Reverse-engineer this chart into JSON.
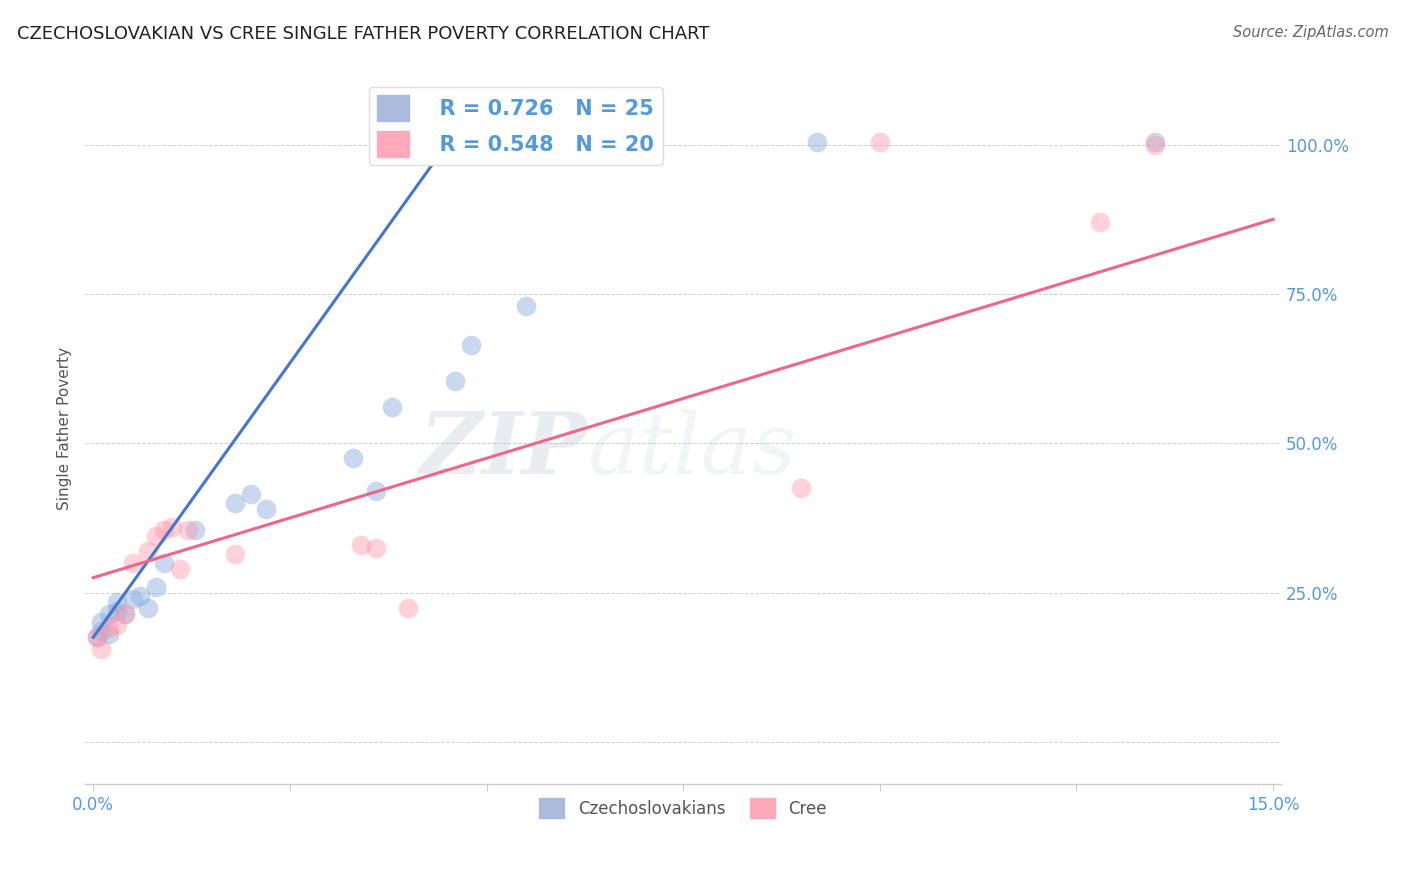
{
  "title": "CZECHOSLOVAKIAN VS CREE SINGLE FATHER POVERTY CORRELATION CHART",
  "source": "Source: ZipAtlas.com",
  "ylabel": "Single Father Poverty",
  "xlim": [
    -0.001,
    0.151
  ],
  "ylim": [
    -0.07,
    1.12
  ],
  "legend_r_blue": "R = 0.726",
  "legend_n_blue": "N = 25",
  "legend_r_pink": "R = 0.548",
  "legend_n_pink": "N = 20",
  "blue_scatter": "#88AADD",
  "pink_scatter": "#FF99AA",
  "blue_line": "#4477CC",
  "pink_line": "#EE6688",
  "watermark_zip": "ZIP",
  "watermark_atlas": "atlas",
  "ytick_positions": [
    0.0,
    0.25,
    0.5,
    0.75,
    1.0
  ],
  "ytick_labels_right": [
    "",
    "25.0%",
    "50.0%",
    "75.0%",
    "100.0%"
  ],
  "xtick_positions": [
    0.0,
    0.025,
    0.05,
    0.075,
    0.1,
    0.125,
    0.15
  ],
  "xtick_labels": [
    "0.0%",
    "",
    "",
    "",
    "",
    "",
    "15.0%"
  ],
  "grid_color": "#BBBBBB",
  "axis_label_color": "#5599DD",
  "axis_tick_fontsize": 12,
  "blue_line_x": [
    0.0,
    0.046
  ],
  "blue_line_y": [
    0.175,
    1.02
  ],
  "pink_line_x": [
    0.0,
    0.15
  ],
  "pink_line_y": [
    0.275,
    0.875
  ],
  "czechoslovakians_x": [
    0.0005,
    0.001,
    0.001,
    0.002,
    0.002,
    0.003,
    0.003,
    0.004,
    0.005,
    0.006,
    0.007,
    0.008,
    0.009,
    0.013,
    0.018,
    0.02,
    0.022,
    0.033,
    0.036,
    0.038,
    0.046,
    0.048,
    0.055,
    0.092,
    0.135
  ],
  "czechoslovakians_y": [
    0.175,
    0.185,
    0.2,
    0.18,
    0.215,
    0.22,
    0.235,
    0.215,
    0.24,
    0.245,
    0.225,
    0.26,
    0.3,
    0.355,
    0.4,
    0.415,
    0.39,
    0.475,
    0.42,
    0.56,
    0.605,
    0.665,
    0.73,
    1.005,
    1.005
  ],
  "cree_x": [
    0.0005,
    0.001,
    0.002,
    0.003,
    0.004,
    0.005,
    0.007,
    0.008,
    0.009,
    0.01,
    0.011,
    0.012,
    0.018,
    0.034,
    0.036,
    0.04,
    0.09,
    0.1,
    0.128,
    0.135
  ],
  "cree_y": [
    0.175,
    0.155,
    0.19,
    0.195,
    0.215,
    0.3,
    0.32,
    0.345,
    0.355,
    0.36,
    0.29,
    0.355,
    0.315,
    0.33,
    0.325,
    0.225,
    0.425,
    1.005,
    0.87,
    1.0
  ]
}
